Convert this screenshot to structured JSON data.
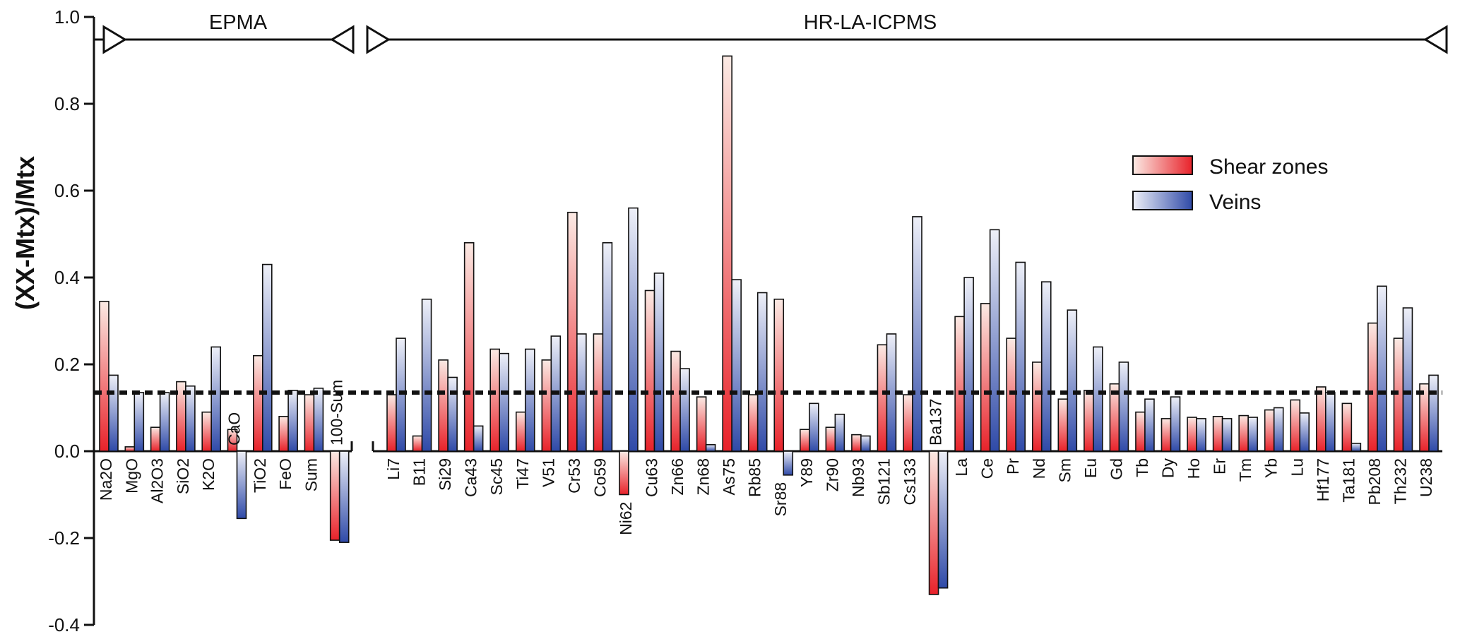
{
  "chart_data": {
    "type": "bar",
    "ylabel": "(XX-Mtx)/Mtx",
    "ylim": [
      -0.4,
      1.0
    ],
    "yticks": [
      "1.0",
      "0.8",
      "0.6",
      "0.4",
      "0.2",
      "0.0",
      "-0.2",
      "-0.4"
    ],
    "reference_line": 0.135,
    "sections": [
      {
        "label": "EPMA",
        "from": "Na2O",
        "to": "100-Sum"
      },
      {
        "label": "HR-LA-ICPMS",
        "from": "Li7",
        "to": "U238"
      }
    ],
    "categories": [
      "Na2O",
      "MgO",
      "Al2O3",
      "SiO2",
      "K2O",
      "CaO",
      "TiO2",
      "FeO",
      "Sum",
      "100-Sum",
      "Li7",
      "B11",
      "Si29",
      "Ca43",
      "Sc45",
      "Ti47",
      "V51",
      "Cr53",
      "Co59",
      "Ni62",
      "Cu63",
      "Zn66",
      "Zn68",
      "As75",
      "Rb85",
      "Sr88",
      "Y89",
      "Zr90",
      "Nb93",
      "Sb121",
      "Cs133",
      "Ba137",
      "La",
      "Ce",
      "Pr",
      "Nd",
      "Sm",
      "Eu",
      "Gd",
      "Tb",
      "Dy",
      "Ho",
      "Er",
      "Tm",
      "Yb",
      "Lu",
      "Hf177",
      "Ta181",
      "Pb208",
      "Th232",
      "U238"
    ],
    "series": [
      {
        "name": "Shear zones",
        "color": "#e8222a",
        "values": [
          0.345,
          0.01,
          0.055,
          0.16,
          0.09,
          0.05,
          0.22,
          0.08,
          0.13,
          -0.205,
          0.13,
          0.035,
          0.21,
          0.48,
          0.235,
          0.09,
          0.21,
          0.55,
          0.27,
          -0.1,
          0.37,
          0.23,
          0.125,
          0.91,
          0.13,
          0.35,
          0.05,
          0.055,
          0.038,
          0.245,
          0.13,
          -0.33,
          0.31,
          0.34,
          0.26,
          0.205,
          0.12,
          0.14,
          0.155,
          0.09,
          0.075,
          0.078,
          0.08,
          0.082,
          0.095,
          0.118,
          0.148,
          0.11,
          0.295,
          0.26,
          0.155
        ]
      },
      {
        "name": "Veins",
        "color": "#2f4aa8",
        "values": [
          0.175,
          0.135,
          0.135,
          0.15,
          0.24,
          -0.155,
          0.43,
          0.14,
          0.145,
          -0.21,
          0.26,
          0.35,
          0.17,
          0.058,
          0.225,
          0.235,
          0.265,
          0.27,
          0.48,
          0.56,
          0.41,
          0.19,
          0.015,
          0.395,
          0.365,
          -0.055,
          0.11,
          0.085,
          0.035,
          0.27,
          0.54,
          -0.315,
          0.4,
          0.51,
          0.435,
          0.39,
          0.325,
          0.24,
          0.205,
          0.12,
          0.125,
          0.075,
          0.075,
          0.078,
          0.1,
          0.088,
          0.135,
          0.018,
          0.38,
          0.33,
          0.175
        ]
      }
    ],
    "legend": {
      "position": "top-right",
      "items": [
        "Shear zones",
        "Veins"
      ]
    },
    "grid": false
  }
}
